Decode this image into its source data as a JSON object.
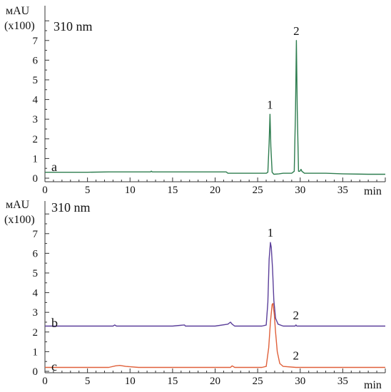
{
  "colors": {
    "trace_a": "#2e7d4f",
    "trace_b": "#5b3f9a",
    "trace_c": "#e0603a",
    "axis": "#333333"
  },
  "chart_data": [
    {
      "type": "line",
      "panel": "top",
      "y_unit_line1": "мAU",
      "y_unit_line2": "(x100)",
      "wavelength": "310 nm",
      "xlabel": "min",
      "xlim": [
        0,
        40
      ],
      "ylim": [
        0,
        8
      ],
      "x_ticks": [
        0,
        5,
        10,
        15,
        20,
        25,
        30,
        35
      ],
      "x_tick_labels": [
        "0",
        "5",
        "10",
        "15",
        "20",
        "25",
        "30",
        "35"
      ],
      "y_ticks": [
        0,
        1,
        2,
        3,
        4,
        5,
        6,
        7
      ],
      "y_tick_labels": [
        "0",
        "1",
        "2",
        "3",
        "4",
        "5",
        "6",
        "7"
      ],
      "grid": false,
      "series": [
        {
          "label": "a",
          "color": "#2e7d4f",
          "x": [
            0,
            5,
            7.5,
            10,
            12.4,
            12.5,
            12.6,
            15,
            18,
            21.3,
            21.5,
            22.5,
            25,
            26.0,
            26.2,
            26.35,
            26.45,
            26.55,
            26.7,
            26.9,
            27.5,
            28,
            29.0,
            29.3,
            29.45,
            29.55,
            29.65,
            29.8,
            29.95,
            30.1,
            30.2,
            30.5,
            31,
            33,
            35,
            38,
            40
          ],
          "y": [
            0.3,
            0.3,
            0.32,
            0.32,
            0.32,
            0.36,
            0.32,
            0.32,
            0.32,
            0.32,
            0.25,
            0.25,
            0.25,
            0.25,
            0.3,
            1.8,
            3.25,
            1.6,
            0.3,
            0.2,
            0.22,
            0.25,
            0.25,
            0.35,
            3.5,
            7.0,
            3.5,
            0.35,
            0.35,
            0.45,
            0.35,
            0.25,
            0.25,
            0.25,
            0.22,
            0.2,
            0.2
          ]
        }
      ],
      "peak_labels": [
        {
          "text": "1",
          "x": 26.45,
          "y": 3.25
        },
        {
          "text": "2",
          "x": 29.55,
          "y": 7.0
        }
      ]
    },
    {
      "type": "line",
      "panel": "bottom",
      "y_unit_line1": "мAU",
      "y_unit_line2": "(x100)",
      "wavelength": "310 nm",
      "xlabel": "min",
      "xlim": [
        0,
        40
      ],
      "ylim": [
        0,
        8
      ],
      "x_ticks": [
        0,
        5,
        10,
        15,
        20,
        25,
        30,
        35
      ],
      "x_tick_labels": [
        "0",
        "5",
        "10",
        "15",
        "20",
        "25",
        "30",
        "35"
      ],
      "y_ticks": [
        0,
        1,
        2,
        3,
        4,
        5,
        6,
        7
      ],
      "y_tick_labels": [
        "0",
        "1",
        "2",
        "3",
        "4",
        "5",
        "6",
        "7"
      ],
      "grid": false,
      "series": [
        {
          "label": "b",
          "color": "#5b3f9a",
          "x": [
            0,
            5,
            8,
            8.2,
            8.4,
            12,
            15,
            16.4,
            16.5,
            16.6,
            20,
            21.5,
            21.8,
            22.0,
            22.3,
            24,
            25.5,
            26.0,
            26.2,
            26.35,
            26.5,
            26.6,
            26.75,
            26.9,
            27.1,
            27.4,
            28,
            29.4,
            29.5,
            29.6,
            32,
            36,
            40
          ],
          "y": [
            2.3,
            2.3,
            2.3,
            2.36,
            2.3,
            2.3,
            2.3,
            2.36,
            2.3,
            2.3,
            2.3,
            2.4,
            2.5,
            2.4,
            2.3,
            2.3,
            2.3,
            2.35,
            3.5,
            5.7,
            6.55,
            6.3,
            5.2,
            3.6,
            2.7,
            2.4,
            2.3,
            2.3,
            2.36,
            2.3,
            2.3,
            2.3,
            2.3
          ]
        },
        {
          "label": "c",
          "color": "#e0603a",
          "x": [
            0,
            5,
            7.5,
            8.3,
            8.8,
            9.5,
            11,
            15,
            20,
            21.8,
            22.0,
            22.3,
            24,
            25.5,
            26.0,
            26.3,
            26.5,
            26.7,
            26.8,
            26.95,
            27.1,
            27.3,
            27.6,
            28,
            29.5,
            32,
            36,
            40
          ],
          "y": [
            0.2,
            0.2,
            0.2,
            0.28,
            0.3,
            0.25,
            0.2,
            0.2,
            0.2,
            0.2,
            0.28,
            0.2,
            0.2,
            0.2,
            0.25,
            1.2,
            2.5,
            3.4,
            3.45,
            2.9,
            2.0,
            1.0,
            0.4,
            0.25,
            0.2,
            0.2,
            0.2,
            0.2
          ]
        }
      ],
      "peak_labels": [
        {
          "text": "1",
          "x": 26.5,
          "y": 6.55
        },
        {
          "text": "2",
          "x": 29.5,
          "y": 2.36
        },
        {
          "text": "2",
          "x": 29.5,
          "y": 0.3
        }
      ]
    }
  ]
}
